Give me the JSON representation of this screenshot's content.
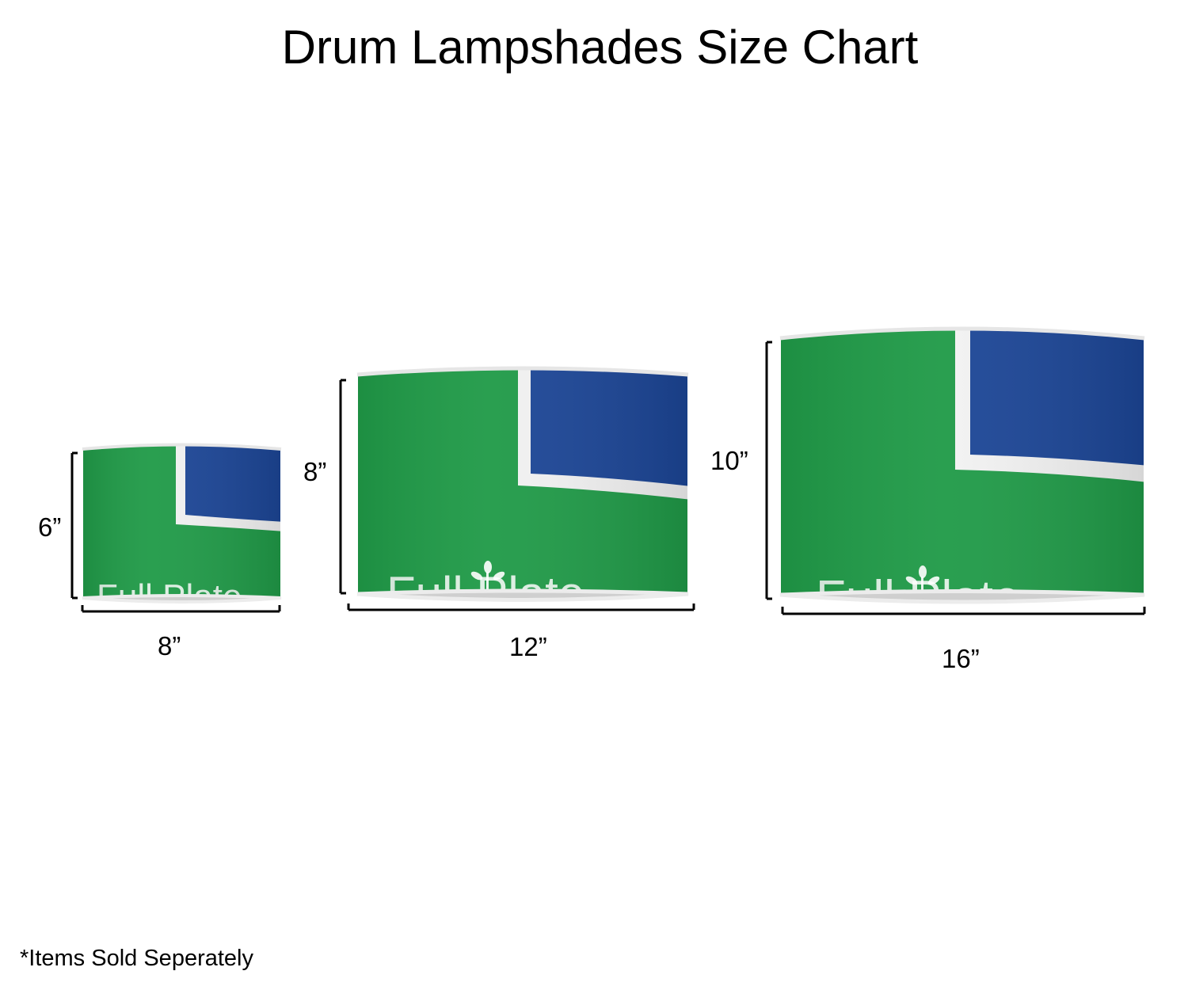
{
  "title": "Drum Lampshades Size Chart",
  "footnote": "*Items Sold Seperately",
  "brand": "Full Plate",
  "colors": {
    "green": "#1f9a47",
    "blue": "#1b4596",
    "stripe": "#f2f2f2",
    "rim": "#e6e6e6",
    "bracket": "#000000"
  },
  "shades": [
    {
      "size": "small",
      "height_label": "6”",
      "width_label": "8”"
    },
    {
      "size": "medium",
      "height_label": "8”",
      "width_label": "12”"
    },
    {
      "size": "large",
      "height_label": "10”",
      "width_label": "16”"
    }
  ]
}
